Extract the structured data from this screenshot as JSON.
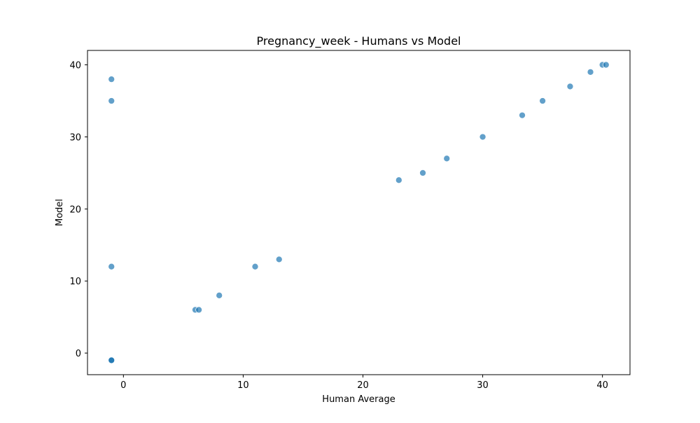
{
  "chart_data": {
    "type": "scatter",
    "title": "Pregnancy_week - Humans vs Model",
    "xlabel": "Human Average",
    "ylabel": "Model",
    "xlim": [
      -3,
      42.3
    ],
    "ylim": [
      -3,
      42
    ],
    "xticks": [
      0,
      10,
      20,
      30,
      40
    ],
    "yticks": [
      0,
      10,
      20,
      30,
      40
    ],
    "grid": false,
    "point_color": "#1f77b4",
    "points": [
      {
        "x": -1,
        "y": 38
      },
      {
        "x": -1,
        "y": 35
      },
      {
        "x": -1,
        "y": 12
      },
      {
        "x": -1,
        "y": -1
      },
      {
        "x": -1,
        "y": -1
      },
      {
        "x": -1,
        "y": -1
      },
      {
        "x": 6,
        "y": 6
      },
      {
        "x": 6.3,
        "y": 6
      },
      {
        "x": 8,
        "y": 8
      },
      {
        "x": 11,
        "y": 12
      },
      {
        "x": 13,
        "y": 13
      },
      {
        "x": 23,
        "y": 24
      },
      {
        "x": 25,
        "y": 25
      },
      {
        "x": 27,
        "y": 27
      },
      {
        "x": 30,
        "y": 30
      },
      {
        "x": 33.3,
        "y": 33
      },
      {
        "x": 35,
        "y": 35
      },
      {
        "x": 37.3,
        "y": 37
      },
      {
        "x": 39,
        "y": 39
      },
      {
        "x": 40,
        "y": 40
      },
      {
        "x": 40.3,
        "y": 40
      }
    ]
  }
}
